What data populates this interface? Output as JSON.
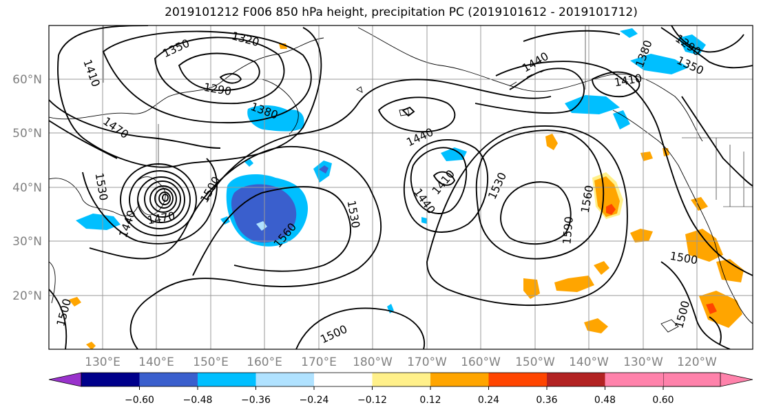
{
  "title": "2019101212 F006 850 hPa height, precipitation PC (2019101612 - 2019101712)",
  "map": {
    "lat_labels": [
      "60°N",
      "50°N",
      "40°N",
      "30°N",
      "20°N"
    ],
    "lon_labels": [
      "130°E",
      "140°E",
      "150°E",
      "160°E",
      "170°E",
      "180°W",
      "170°W",
      "160°W",
      "150°W",
      "140°W",
      "130°W",
      "120°W"
    ],
    "contour_labels": [
      {
        "id": "c1350a",
        "text": "1350"
      },
      {
        "id": "c1320",
        "text": "1320"
      },
      {
        "id": "c1410a",
        "text": "1410"
      },
      {
        "id": "c1290",
        "text": "1290"
      },
      {
        "id": "c1380a",
        "text": "1380"
      },
      {
        "id": "c1470",
        "text": "1470"
      },
      {
        "id": "c1440a",
        "text": "1440"
      },
      {
        "id": "c1440b",
        "text": "1440"
      },
      {
        "id": "c1410b",
        "text": "1410"
      },
      {
        "id": "c1440c",
        "text": "1440"
      },
      {
        "id": "c1530a",
        "text": "1530"
      },
      {
        "id": "c1500a",
        "text": "1500"
      },
      {
        "id": "c1530b",
        "text": "1530"
      },
      {
        "id": "c1560a",
        "text": "1560"
      },
      {
        "id": "c1530c",
        "text": "1530"
      },
      {
        "id": "c1560b",
        "text": "1560"
      },
      {
        "id": "c1590",
        "text": "1590"
      },
      {
        "id": "c1500b",
        "text": "1500"
      },
      {
        "id": "c1500c",
        "text": "1500"
      },
      {
        "id": "c1500d",
        "text": "1500"
      },
      {
        "id": "c1500e",
        "text": "1500"
      },
      {
        "id": "c1410c",
        "text": "1410"
      },
      {
        "id": "c1380b",
        "text": "1380"
      },
      {
        "id": "c1350b",
        "text": "1350"
      },
      {
        "id": "c1290b",
        "text": "1290"
      },
      {
        "id": "c1470b",
        "text": "1470"
      },
      {
        "id": "c1440d",
        "text": "1440"
      }
    ]
  },
  "colorbar": {
    "colors": [
      "#9932cc",
      "#00008b",
      "#3a5fcd",
      "#00bfff",
      "#b0e2ff",
      "#ffffff",
      "#fff08a",
      "#ffa500",
      "#ff4500",
      "#b22222",
      "#ff82ab"
    ],
    "tick_labels": [
      "−0.60",
      "−0.48",
      "−0.36",
      "−0.24",
      "−0.12",
      "0.12",
      "0.24",
      "0.36",
      "0.48",
      "0.60"
    ]
  }
}
